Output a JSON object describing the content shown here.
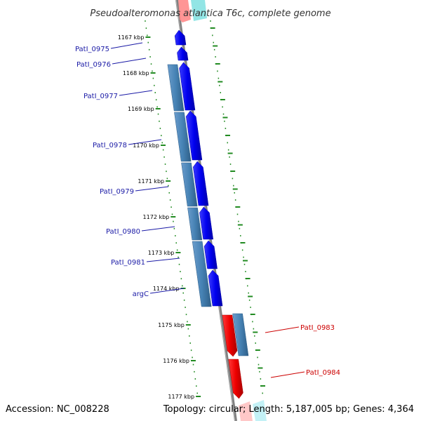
{
  "title": "Pseudoalteromonas atlantica T6c, complete genome",
  "footer": {
    "accession": "Accession: NC_008228",
    "summary": "Topology: circular; Length: 5,187,005 bp; Genes: 4,364"
  },
  "scale_labels": [
    "1167 kbp",
    "1168 kbp",
    "1169 kbp",
    "1170 kbp",
    "1171 kbp",
    "1172 kbp",
    "1173 kbp",
    "1174 kbp",
    "1175 kbp",
    "1176 kbp",
    "1177 kbp"
  ],
  "forward_genes": [
    {
      "name": "PatI_0975",
      "label": "PatI_0975"
    },
    {
      "name": "PatI_0976",
      "label": "PatI_0976"
    },
    {
      "name": "PatI_0977",
      "label": "PatI_0977"
    },
    {
      "name": "PatI_0978",
      "label": "PatI_0978"
    },
    {
      "name": "PatI_0979",
      "label": "PatI_0979"
    },
    {
      "name": "PatI_0980",
      "label": "PatI_0980"
    },
    {
      "name": "PatI_0981",
      "label": "PatI_0981"
    },
    {
      "name": "argC",
      "label": "argC"
    }
  ],
  "reverse_genes": [
    {
      "name": "PatI_0983",
      "label": "PatI_0983"
    },
    {
      "name": "PatI_0984",
      "label": "PatI_0984"
    }
  ],
  "colors": {
    "cds_forward": "#0000ee",
    "orf_forward": "#4682b4",
    "cds_reverse": "#ee0000",
    "orf_reverse": "#4682b4",
    "backbone": "#808080",
    "tick": "#228b22",
    "label_forward": "#1a1aa6",
    "label_reverse": "#cc0000"
  }
}
